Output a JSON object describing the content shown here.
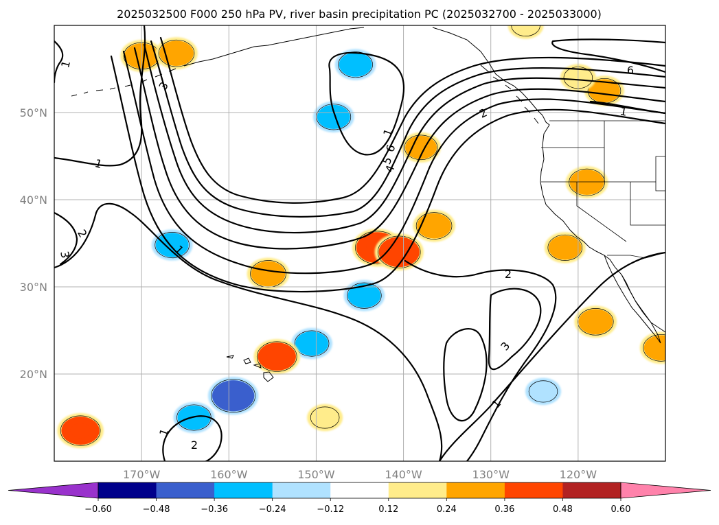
{
  "chart_data": {
    "type": "contour map",
    "title": "2025032500 F000 250 hPa PV, river basin precipitation PC (2025032700 - 2025033000)",
    "map": {
      "lon_range": [
        -180,
        -110
      ],
      "lat_range": [
        10,
        60
      ],
      "lon_ticks": [
        -170,
        -160,
        -150,
        -140,
        -130,
        -120
      ],
      "lon_tick_labels": [
        "170°W",
        "160°W",
        "150°W",
        "140°W",
        "130°W",
        "120°W"
      ],
      "lat_ticks": [
        20,
        30,
        40,
        50
      ],
      "lat_tick_labels": [
        "20°N",
        "30°N",
        "40°N",
        "50°N"
      ],
      "grid": true
    },
    "pv_contours": {
      "levels": [
        1,
        2,
        3,
        4,
        5,
        6
      ],
      "color": "#000000",
      "labels_shown": [
        "1",
        "1",
        "1",
        "1",
        "1",
        "1",
        "1",
        "2",
        "2",
        "2",
        "3",
        "3",
        "3",
        "4",
        "5",
        "6",
        "6"
      ]
    },
    "colorbar": {
      "boundaries": [
        -0.6,
        -0.48,
        -0.36,
        -0.24,
        -0.12,
        0.12,
        0.24,
        0.36,
        0.48,
        0.6
      ],
      "tick_labels": [
        "−0.60",
        "−0.48",
        "−0.36",
        "−0.24",
        "−0.12",
        "0.12",
        "0.24",
        "0.36",
        "0.48",
        "0.60"
      ],
      "colors": [
        "#9932cc",
        "#00008b",
        "#3a5fcd",
        "#00bfff",
        "#b0e2ff",
        "#ffffff",
        "#ffec8b",
        "#ffa500",
        "#ff4500",
        "#b22222",
        "#ff82ab"
      ],
      "extend": "both"
    },
    "precip_pc_areas": [
      {
        "lon": -170,
        "lat": 56.5,
        "value": 0.3
      },
      {
        "lon": -166,
        "lat": 56.8,
        "value": 0.3
      },
      {
        "lon": -145.5,
        "lat": 55.5,
        "value": -0.28
      },
      {
        "lon": -148,
        "lat": 49.5,
        "value": -0.28
      },
      {
        "lon": -143,
        "lat": 34.5,
        "value": 0.42
      },
      {
        "lon": -140.5,
        "lat": 34.0,
        "value": 0.4
      },
      {
        "lon": -136.5,
        "lat": 37.0,
        "value": 0.3
      },
      {
        "lon": -138,
        "lat": 46.0,
        "value": 0.26
      },
      {
        "lon": -166.5,
        "lat": 34.8,
        "value": -0.28
      },
      {
        "lon": -155.5,
        "lat": 31.5,
        "value": 0.3
      },
      {
        "lon": -144.5,
        "lat": 29.0,
        "value": -0.28
      },
      {
        "lon": -150.5,
        "lat": 23.5,
        "value": -0.28
      },
      {
        "lon": -154.5,
        "lat": 22.0,
        "value": 0.36
      },
      {
        "lon": -159.5,
        "lat": 17.5,
        "value": -0.42
      },
      {
        "lon": -164,
        "lat": 15.0,
        "value": -0.28
      },
      {
        "lon": -177,
        "lat": 13.5,
        "value": 0.36
      },
      {
        "lon": -149,
        "lat": 15.0,
        "value": 0.2
      },
      {
        "lon": -124,
        "lat": 18.0,
        "value": -0.2
      },
      {
        "lon": -118,
        "lat": 26.0,
        "value": 0.3
      },
      {
        "lon": -110.5,
        "lat": 23.0,
        "value": 0.3
      },
      {
        "lon": -119,
        "lat": 42.0,
        "value": 0.3
      },
      {
        "lon": -121.5,
        "lat": 34.5,
        "value": 0.28
      },
      {
        "lon": -117,
        "lat": 52.5,
        "value": 0.26
      },
      {
        "lon": -120,
        "lat": 54.0,
        "value": 0.2
      },
      {
        "lon": -126,
        "lat": 60.0,
        "value": 0.2
      }
    ]
  }
}
